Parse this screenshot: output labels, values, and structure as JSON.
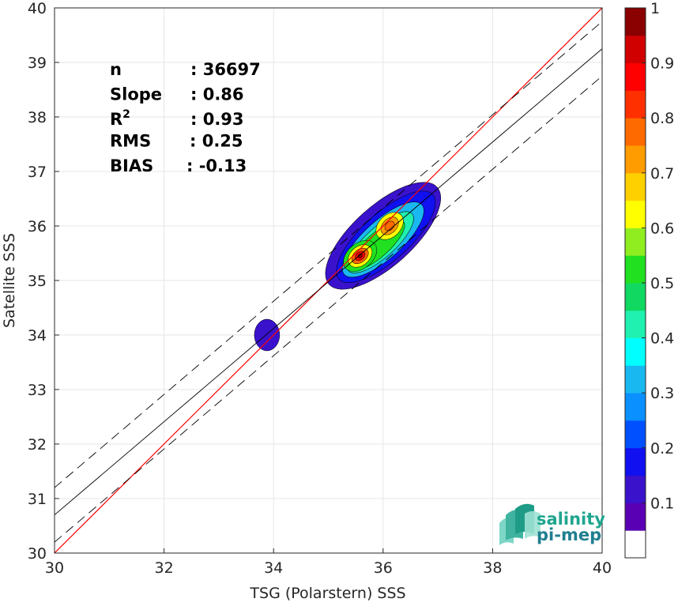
{
  "chart_data": {
    "type": "scatter",
    "subtype": "density-contour",
    "xlabel": "TSG (Polarstern) SSS",
    "ylabel": "Satellite SSS",
    "xlim": [
      30,
      40
    ],
    "ylim": [
      30,
      40
    ],
    "xticks": [
      30,
      32,
      34,
      36,
      38,
      40
    ],
    "yticks": [
      30,
      31,
      32,
      33,
      34,
      35,
      36,
      37,
      38,
      39,
      40
    ],
    "grid": true,
    "stats": [
      {
        "label": "n",
        "value": ": 36697"
      },
      {
        "label": "Slope",
        "value": ": 0.86"
      },
      {
        "label": "R",
        "sup": "2",
        "value": ": 0.93"
      },
      {
        "label": "RMS",
        "value": ": 0.25"
      },
      {
        "label": "BIAS",
        "value": ": -0.13"
      }
    ],
    "lines": [
      {
        "role": "identity",
        "color": "#ff0000",
        "style": "solid",
        "points": [
          [
            30,
            30
          ],
          [
            40,
            40
          ]
        ]
      },
      {
        "role": "regression",
        "color": "#000000",
        "style": "solid",
        "points": [
          [
            30,
            30.7
          ],
          [
            40,
            39.25
          ]
        ]
      },
      {
        "role": "regression-upper",
        "color": "#000000",
        "style": "dashed",
        "points": [
          [
            30,
            31.2
          ],
          [
            40,
            39.75
          ]
        ]
      },
      {
        "role": "regression-lower",
        "color": "#000000",
        "style": "dashed",
        "points": [
          [
            30,
            30.2
          ],
          [
            40,
            38.75
          ]
        ]
      }
    ],
    "density_peaks": [
      {
        "x": 35.58,
        "y": 35.45,
        "level": 1.0
      },
      {
        "x": 36.12,
        "y": 36.0,
        "level": 0.8
      },
      {
        "x": 33.88,
        "y": 33.98,
        "level": 0.1
      }
    ],
    "colorbar": {
      "range": [
        0,
        1
      ],
      "ticks": [
        "0.1",
        "0.2",
        "0.3",
        "0.4",
        "0.5",
        "0.6",
        "0.7",
        "0.8",
        "0.9",
        "1"
      ],
      "colors": [
        "#ffffff",
        "#5a00b4",
        "#3a12cc",
        "#1010f0",
        "#0050ff",
        "#0a90ff",
        "#1ab8f0",
        "#00ffff",
        "#20f0b0",
        "#10d860",
        "#20e020",
        "#90ee20",
        "#ffff00",
        "#ffd000",
        "#ff9c00",
        "#ff6a00",
        "#ff3000",
        "#ff0000",
        "#d00000",
        "#8b0000"
      ]
    }
  },
  "logo": {
    "line1": "salinity",
    "line2": "pi-mep"
  }
}
